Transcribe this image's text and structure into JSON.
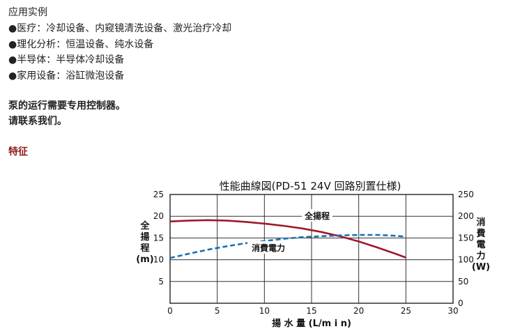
{
  "intro": {
    "heading": "应用实例",
    "bullet_glyph": "●",
    "items": [
      "医疗：冷却设备、内窥镜清洗设备、激光治疗冷却",
      "理化分析：恒温设备、纯水设备",
      "半导体：半导体冷却设备",
      "家用设备：浴缸微泡设备"
    ]
  },
  "note": {
    "line1": "泵的运行需要专用控制器。",
    "line2": "请联系我们。"
  },
  "feature_heading": "特征",
  "chart_data": {
    "type": "line",
    "title": "性能曲線図(PD-51 24V 回路別置仕様)",
    "xlabel": "揚 水 量 (L/m i n)",
    "ylabel_left": [
      "全",
      "揚",
      "程",
      "(m)"
    ],
    "ylabel_right": [
      "消",
      "費",
      "電",
      "力",
      "(W)"
    ],
    "xlim": [
      0,
      30
    ],
    "ylim_left": [
      0,
      25
    ],
    "ylim_right": [
      0,
      250
    ],
    "x_ticks": [
      "0",
      "5",
      "10",
      "15",
      "20",
      "25",
      "30"
    ],
    "y_ticks_left": [
      "",
      "5",
      "10",
      "15",
      "20",
      "25"
    ],
    "y_ticks_right": [
      "0",
      "50",
      "100",
      "150",
      "200",
      "250"
    ],
    "grid": true,
    "series": [
      {
        "name": "全揚程",
        "axis": "left",
        "style": "solid",
        "color": "#a0182a",
        "x": [
          0,
          2,
          4,
          6,
          8,
          10,
          12,
          14,
          16,
          18,
          20,
          22,
          24,
          25
        ],
        "y": [
          18.8,
          19.0,
          19.1,
          19.0,
          18.7,
          18.3,
          17.8,
          17.2,
          16.4,
          15.4,
          14.2,
          12.8,
          11.3,
          10.5
        ]
      },
      {
        "name": "消費電力",
        "axis": "right",
        "style": "dashed",
        "color": "#1a6fb5",
        "x": [
          0,
          2,
          4,
          6,
          8,
          10,
          12,
          14,
          16,
          18,
          20,
          22,
          24,
          25
        ],
        "y": [
          104,
          114,
          123,
          131,
          138,
          143,
          148,
          152,
          154,
          156,
          157,
          157,
          155,
          153
        ]
      }
    ]
  }
}
